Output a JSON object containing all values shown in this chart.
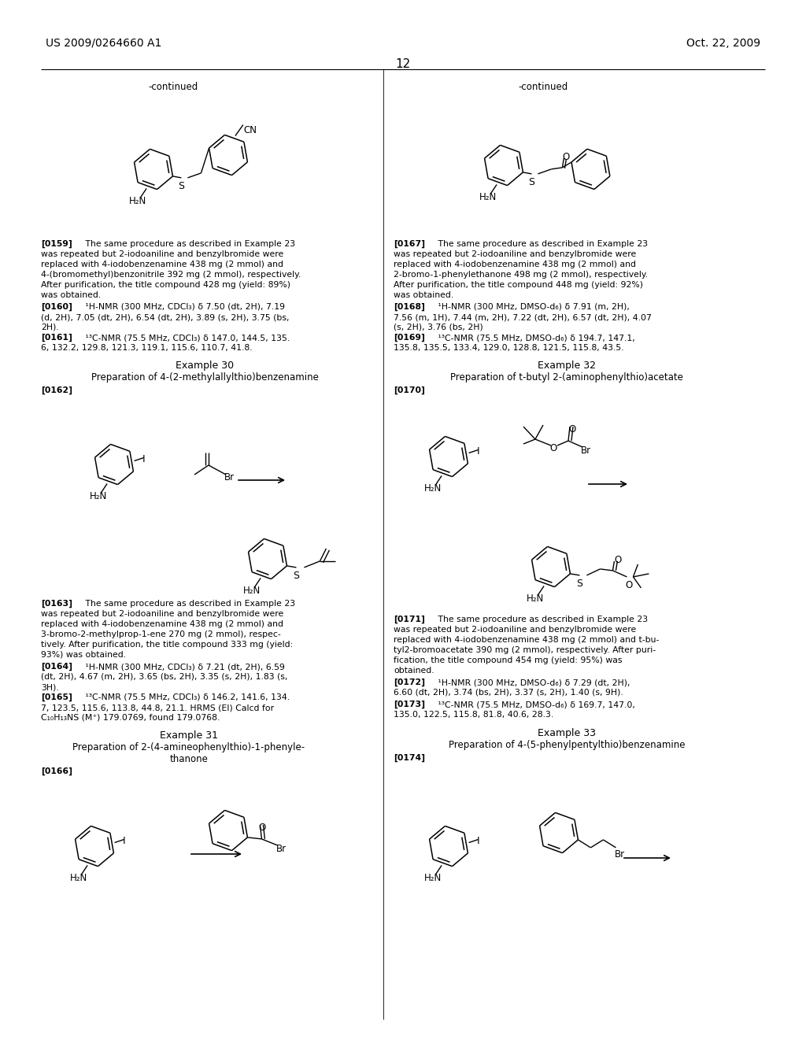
{
  "background_color": "#ffffff",
  "header_left": "US 2009/0264660 A1",
  "header_right": "Oct. 22, 2009",
  "page_number": "12",
  "body_fontsize": 7.8,
  "header_fontsize": 10
}
